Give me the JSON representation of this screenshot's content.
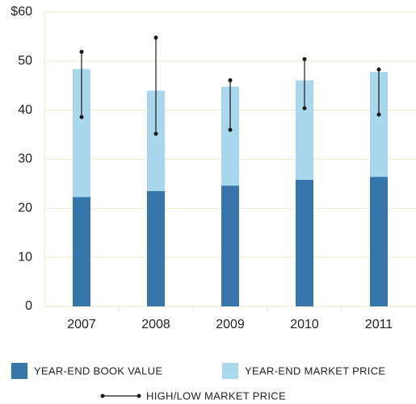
{
  "chart_data": {
    "type": "bar",
    "categories": [
      "2007",
      "2008",
      "2009",
      "2010",
      "2011"
    ],
    "series": [
      {
        "name": "YEAR-END MARKET PRICE",
        "color": "#a9d8ee",
        "values": [
          48.4,
          44.0,
          44.8,
          46.1,
          47.8
        ]
      },
      {
        "name": "YEAR-END BOOK VALUE",
        "color": "#3776ab",
        "values": [
          22.3,
          23.5,
          24.6,
          25.8,
          26.4
        ]
      }
    ],
    "high_low": {
      "name": "HIGH/LOW MARKET PRICE",
      "color": "#1a1a1a",
      "high": [
        51.9,
        54.8,
        46.1,
        50.4,
        48.3
      ],
      "low": [
        38.6,
        35.2,
        36.0,
        40.4,
        39.1
      ]
    },
    "ylim": [
      0,
      60
    ],
    "yticks": [
      0,
      10,
      20,
      30,
      40,
      50,
      {
        "value": 60,
        "label": "$60"
      }
    ],
    "grid": true
  }
}
